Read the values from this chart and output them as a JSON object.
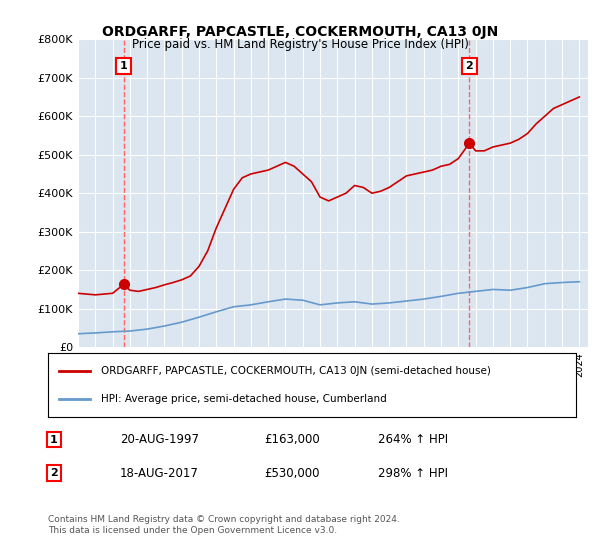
{
  "title": "ORDGARFF, PAPCASTLE, COCKERMOUTH, CA13 0JN",
  "subtitle": "Price paid vs. HM Land Registry's House Price Index (HPI)",
  "bg_color": "#dce6f0",
  "plot_bg_color": "#dce6f0",
  "x_start_year": 1995,
  "x_end_year": 2024,
  "y_min": 0,
  "y_max": 800000,
  "y_ticks": [
    0,
    100000,
    200000,
    300000,
    400000,
    500000,
    600000,
    700000,
    800000
  ],
  "y_tick_labels": [
    "£0",
    "£100K",
    "£200K",
    "£300K",
    "£400K",
    "£500K",
    "£600K",
    "£700K",
    "£800K"
  ],
  "marker1_year": 1997.64,
  "marker1_value": 163000,
  "marker1_label": "1",
  "marker1_text": "20-AUG-1997",
  "marker1_price": "£163,000",
  "marker1_hpi": "264% ↑ HPI",
  "marker2_year": 2017.64,
  "marker2_value": 530000,
  "marker2_label": "2",
  "marker2_text": "18-AUG-2017",
  "marker2_price": "£530,000",
  "marker2_hpi": "298% ↑ HPI",
  "red_line_color": "#cc0000",
  "blue_line_color": "#6699cc",
  "dashed_line_color": "#ff6666",
  "legend_line1": "ORDGARFF, PAPCASTLE, COCKERMOUTH, CA13 0JN (semi-detached house)",
  "legend_line2": "HPI: Average price, semi-detached house, Cumberland",
  "footer": "Contains HM Land Registry data © Crown copyright and database right 2024.\nThis data is licensed under the Open Government Licence v3.0.",
  "red_line_x": [
    1995.0,
    1995.5,
    1996.0,
    1996.5,
    1997.0,
    1997.64,
    1998.0,
    1998.5,
    1999.0,
    1999.5,
    2000.0,
    2000.5,
    2001.0,
    2001.5,
    2002.0,
    2002.5,
    2003.0,
    2003.5,
    2004.0,
    2004.5,
    2005.0,
    2005.5,
    2006.0,
    2006.5,
    2007.0,
    2007.5,
    2008.0,
    2008.5,
    2009.0,
    2009.5,
    2010.0,
    2010.5,
    2011.0,
    2011.5,
    2012.0,
    2012.5,
    2013.0,
    2013.5,
    2014.0,
    2014.5,
    2015.0,
    2015.5,
    2016.0,
    2016.5,
    2017.0,
    2017.64,
    2018.0,
    2018.5,
    2019.0,
    2019.5,
    2020.0,
    2020.5,
    2021.0,
    2021.5,
    2022.0,
    2022.5,
    2023.0,
    2023.5,
    2024.0
  ],
  "red_line_y": [
    140000,
    138000,
    136000,
    138000,
    140000,
    163000,
    148000,
    145000,
    150000,
    155000,
    162000,
    168000,
    175000,
    185000,
    210000,
    250000,
    310000,
    360000,
    410000,
    440000,
    450000,
    455000,
    460000,
    470000,
    480000,
    470000,
    450000,
    430000,
    390000,
    380000,
    390000,
    400000,
    420000,
    415000,
    400000,
    405000,
    415000,
    430000,
    445000,
    450000,
    455000,
    460000,
    470000,
    475000,
    490000,
    530000,
    510000,
    510000,
    520000,
    525000,
    530000,
    540000,
    555000,
    580000,
    600000,
    620000,
    630000,
    640000,
    650000
  ],
  "blue_line_x": [
    1995.0,
    1996.0,
    1997.0,
    1998.0,
    1999.0,
    2000.0,
    2001.0,
    2002.0,
    2003.0,
    2004.0,
    2005.0,
    2006.0,
    2007.0,
    2008.0,
    2009.0,
    2010.0,
    2011.0,
    2012.0,
    2013.0,
    2014.0,
    2015.0,
    2016.0,
    2017.0,
    2018.0,
    2019.0,
    2020.0,
    2021.0,
    2022.0,
    2023.0,
    2024.0
  ],
  "blue_line_y": [
    35000,
    37000,
    40000,
    42000,
    47000,
    55000,
    65000,
    78000,
    92000,
    105000,
    110000,
    118000,
    125000,
    122000,
    110000,
    115000,
    118000,
    112000,
    115000,
    120000,
    125000,
    132000,
    140000,
    145000,
    150000,
    148000,
    155000,
    165000,
    168000,
    170000
  ]
}
